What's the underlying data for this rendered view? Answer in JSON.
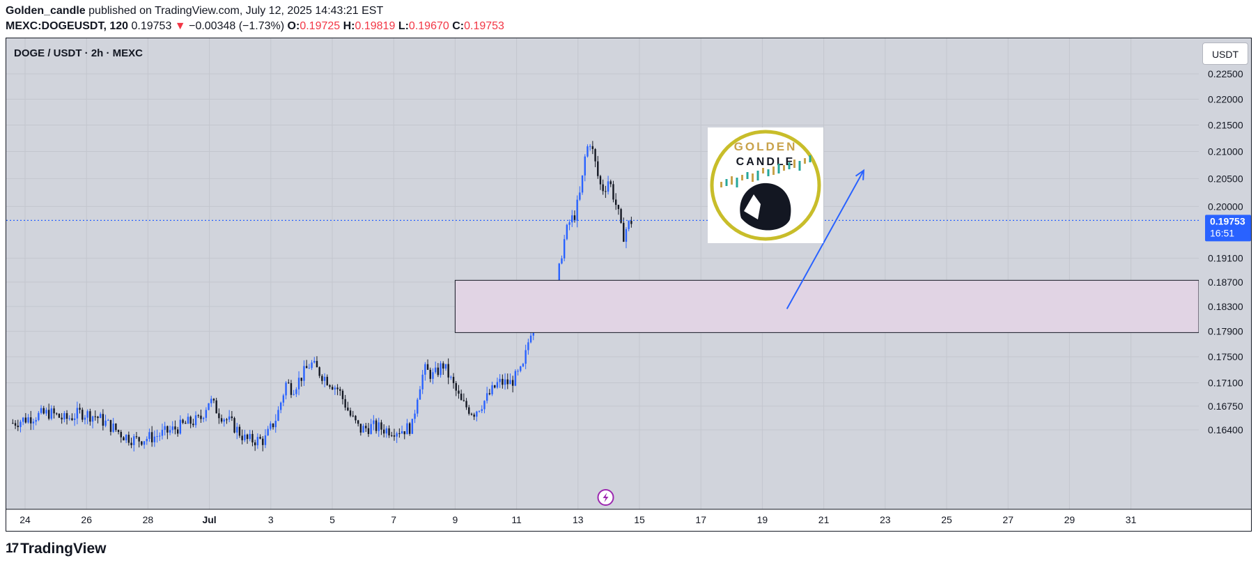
{
  "header": {
    "author": "Golden_candle",
    "published_text": " published on TradingView.com, July 12, 2025 14:43:21 EST",
    "symbol": "MEXC:DOGEUSDT, 120",
    "last": "0.19753",
    "arrow": "▼",
    "change": "−0.00348 (−1.73%)",
    "o_label": "O:",
    "o_val": "0.19725",
    "h_label": "H:",
    "h_val": "0.19819",
    "l_label": "L:",
    "l_val": "0.19670",
    "c_label": "C:",
    "c_val": "0.19753"
  },
  "chart_label": "DOGE / USDT · 2h · MEXC",
  "currency_button": "USDT",
  "price_tag": {
    "price": "0.19753",
    "countdown": "16:51"
  },
  "logo_text": {
    "line1": "GOLDEN",
    "line2": "CANDLE"
  },
  "footer": {
    "brand": "TradingView",
    "mark": "17"
  },
  "colors": {
    "bull": "#2962ff",
    "bear": "#131722",
    "bg": "#d1d4dc",
    "zone": "#e1d4e4",
    "arrow": "#2962ff",
    "price_tag": "#2962ff",
    "logo_ring": "#c8bd2a"
  },
  "chart_data": {
    "type": "candlestick",
    "title": "DOGE / USDT · 2h · MEXC",
    "y_axis": {
      "ticks": [
        "0.22500",
        "0.22000",
        "0.21500",
        "0.21000",
        "0.20500",
        "0.20000",
        "0.19100",
        "0.18700",
        "0.18300",
        "0.17900",
        "0.17500",
        "0.17100",
        "0.16750",
        "0.16400"
      ],
      "scale": "log"
    },
    "x_axis": {
      "ticks": [
        "24",
        "26",
        "28",
        "Jul",
        "3",
        "5",
        "7",
        "9",
        "11",
        "13",
        "15",
        "17",
        "19",
        "21",
        "23",
        "25",
        "27",
        "29",
        "31"
      ]
    },
    "last_price": 0.19753,
    "price_line": 0.19753,
    "zone": {
      "top": 0.1873,
      "bottom": 0.1788,
      "from": "Jul 8",
      "to": "right edge"
    },
    "arrow": {
      "from": {
        "date": "Jul 18.8",
        "price": 0.1826
      },
      "to": {
        "date": "Jul 21.3",
        "price": 0.2065
      }
    },
    "anchors": [
      [
        "Jun 23.6",
        0.165
      ],
      [
        "Jun 24.3",
        0.166
      ],
      [
        "Jun 24.8",
        0.1665
      ],
      [
        "Jun 25.3",
        0.1655
      ],
      [
        "Jun 25.8",
        0.1665
      ],
      [
        "Jun 26.3",
        0.166
      ],
      [
        "Jun 26.8",
        0.1645
      ],
      [
        "Jun 27.2",
        0.1632
      ],
      [
        "Jun 27.6",
        0.1625
      ],
      [
        "Jun 28.2",
        0.163
      ],
      [
        "Jun 28.8",
        0.164
      ],
      [
        "Jun 29.3",
        0.165
      ],
      [
        "Jun 29.7",
        0.1655
      ],
      [
        "Jun 30.0",
        0.1685
      ],
      [
        "Jun 30.3",
        0.1665
      ],
      [
        "Jun 30.7",
        0.165
      ],
      [
        "Jul 1.2",
        0.1625
      ],
      [
        "Jul 1.8",
        0.1625
      ],
      [
        "Jul 2.2",
        0.166
      ],
      [
        "Jul 2.5",
        0.171
      ],
      [
        "Jul 2.7",
        0.17
      ],
      [
        "Jul 3.3",
        0.174
      ],
      [
        "Jul 3.6",
        0.1725
      ],
      [
        "Jul 3.9",
        0.1712
      ],
      [
        "Jul 4.2",
        0.17
      ],
      [
        "Jul 4.6",
        0.166
      ],
      [
        "Jul 4.9",
        0.164
      ],
      [
        "Jul 5.3",
        0.1645
      ],
      [
        "Jul 5.8",
        0.164
      ],
      [
        "Jul 6.3",
        0.164
      ],
      [
        "Jul 6.6",
        0.1645
      ],
      [
        "Jul 6.8",
        0.17
      ],
      [
        "Jul 7.0",
        0.173
      ],
      [
        "Jul 7.3",
        0.172
      ],
      [
        "Jul 7.6",
        0.1738
      ],
      [
        "Jul 7.8",
        0.172
      ],
      [
        "Jul 8.2",
        0.168
      ],
      [
        "Jul 8.6",
        0.1665
      ],
      [
        "Jul 9.0",
        0.1685
      ],
      [
        "Jul 9.4",
        0.171
      ],
      [
        "Jul 9.8",
        0.171
      ],
      [
        "Jul 10.2",
        0.173
      ],
      [
        "Jul 10.45",
        0.179
      ],
      [
        "Jul 10.6",
        0.181
      ],
      [
        "Jul 10.9",
        0.1805
      ],
      [
        "Jul 11.1",
        0.18
      ],
      [
        "Jul 11.3",
        0.186
      ],
      [
        "Jul 11.5",
        0.193
      ],
      [
        "Jul 11.7",
        0.197
      ],
      [
        "Jul 11.9",
        0.1985
      ],
      [
        "Jul 12.1",
        0.203
      ],
      [
        "Jul 12.25",
        0.21
      ],
      [
        "Jul 12.4",
        0.212
      ],
      [
        "Jul 12.55",
        0.208
      ],
      [
        "Jul 12.7",
        0.204
      ],
      [
        "Jul 12.85",
        0.203
      ],
      [
        "Jul 13.0",
        0.205
      ],
      [
        "Jul 13.15",
        0.202
      ],
      [
        "Jul 13.3",
        0.199
      ],
      [
        "Jul 13.45",
        0.1945
      ],
      [
        "Jul 13.6",
        0.1965
      ],
      [
        "Jul 13.75",
        0.1975
      ]
    ]
  }
}
